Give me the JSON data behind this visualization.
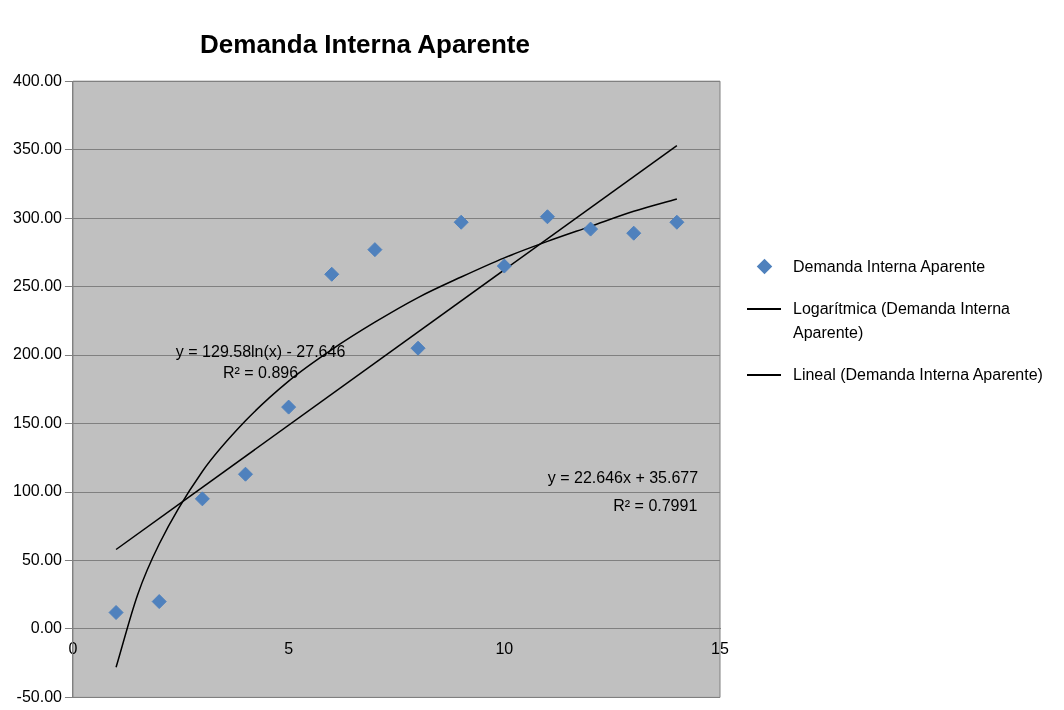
{
  "chart_data": {
    "type": "scatter",
    "title": "Demanda Interna Aparente",
    "xlim": [
      0,
      15
    ],
    "xticks": [
      0,
      5,
      10,
      15
    ],
    "ylim": [
      -50,
      400
    ],
    "yticks": [
      {
        "value": -50,
        "label": "-50.00"
      },
      {
        "value": 0,
        "label": "0.00"
      },
      {
        "value": 50,
        "label": "50.00"
      },
      {
        "value": 100,
        "label": "100.00"
      },
      {
        "value": 150,
        "label": "150.00"
      },
      {
        "value": 200,
        "label": "200.00"
      },
      {
        "value": 250,
        "label": "250.00"
      },
      {
        "value": 300,
        "label": "300.00"
      },
      {
        "value": 350,
        "label": "350.00"
      },
      {
        "value": 400,
        "label": "400.00"
      }
    ],
    "grid": "y",
    "legend": "right",
    "marker": "diamond",
    "series": [
      {
        "name": "Demanda Interna Aparente",
        "type": "scatter",
        "color": "#4f81bd",
        "x": [
          1,
          2,
          3,
          4,
          5,
          6,
          7,
          8,
          9,
          10,
          11,
          12,
          13,
          14
        ],
        "values": [
          12,
          20,
          95,
          113,
          162,
          259,
          277,
          205,
          297,
          265,
          301,
          292,
          289,
          297
        ]
      },
      {
        "name": "Logarítmica (Demanda Interna Aparente)",
        "type": "line",
        "color": "#000000",
        "marker": "none",
        "x": [
          1,
          1.5,
          2,
          3,
          4,
          5,
          6,
          7,
          8,
          9,
          10,
          11,
          12,
          13,
          14
        ],
        "values": [
          -28,
          25,
          62,
          115,
          152,
          181,
          204,
          224,
          242,
          257,
          271,
          283,
          294,
          305,
          314
        ]
      },
      {
        "name": "Lineal (Demanda Interna Aparente)",
        "type": "line",
        "color": "#000000",
        "marker": "none",
        "x": [
          1,
          14
        ],
        "values": [
          58,
          353
        ]
      }
    ],
    "annotations": [
      "y = 129.58ln(x) - 27.646",
      "R² = 0.896",
      "y = 22.646x + 35.677",
      "R² = 0.7991"
    ]
  }
}
